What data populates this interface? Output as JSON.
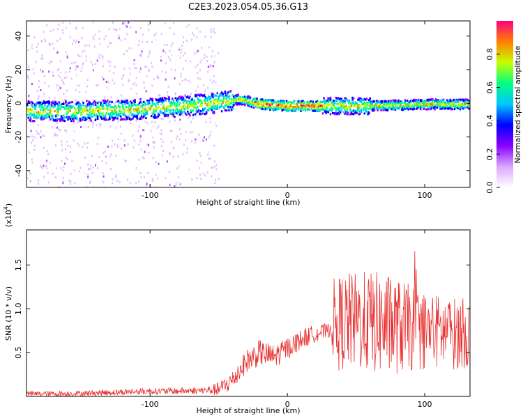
{
  "title": "C2E3.2023.054.05.36.G13",
  "chart_data": [
    {
      "type": "heatmap",
      "name": "spectrogram",
      "xlabel": "Height of straight line (km)",
      "ylabel": "Frequency (Hz)",
      "xlim": [
        -190,
        133
      ],
      "ylim": [
        -50,
        49
      ],
      "x_ticks": [
        -100,
        0,
        100
      ],
      "x_tick_labels": [
        "-100",
        "0",
        "100"
      ],
      "y_ticks": [
        -40,
        -20,
        0,
        20,
        40
      ],
      "y_tick_labels": [
        "-40",
        "-20",
        "0",
        "20",
        "40"
      ],
      "colorbar": {
        "label": "Normalized spectral amplitude",
        "range": [
          0,
          1
        ],
        "ticks": [
          0.0,
          0.2,
          0.4,
          0.6,
          0.8
        ],
        "tick_labels": [
          "0.0",
          "0.2",
          "0.4",
          "0.6",
          "0.8"
        ],
        "colormap": [
          "#ffffff",
          "#d9a8ff",
          "#8a00ff",
          "#0000ff",
          "#00c8ff",
          "#00ff80",
          "#c8ff00",
          "#ff8000",
          "#ff0080"
        ]
      },
      "band_center_hz": [
        {
          "x": -190,
          "y": -4
        },
        {
          "x": -150,
          "y": -4
        },
        {
          "x": -110,
          "y": -3
        },
        {
          "x": -75,
          "y": -1
        },
        {
          "x": -50,
          "y": 1
        },
        {
          "x": -35,
          "y": 3
        },
        {
          "x": -20,
          "y": 0
        },
        {
          "x": 0,
          "y": -1
        },
        {
          "x": 20,
          "y": -1
        },
        {
          "x": 25,
          "y": -1
        },
        {
          "x": 40,
          "y": -1
        },
        {
          "x": 60,
          "y": -1
        },
        {
          "x": 100,
          "y": 0
        },
        {
          "x": 133,
          "y": 0
        }
      ],
      "noise_region_km": [
        -190,
        -50
      ]
    },
    {
      "type": "line",
      "name": "snr",
      "xlabel": "Height of straight line (km)",
      "ylabel": "SNR (10 * v/v)",
      "scale_label": "(x10",
      "scale_exp": "4",
      "scale_close": ")",
      "xlim": [
        -190,
        133
      ],
      "ylim": [
        0,
        1.9
      ],
      "x_ticks": [
        -100,
        0,
        100
      ],
      "x_tick_labels": [
        "-100",
        "0",
        "100"
      ],
      "y_ticks": [
        0.5,
        1.0,
        1.5
      ],
      "y_tick_labels": [
        "0.5",
        "1.0",
        "1.5"
      ],
      "series": [
        {
          "color": "#e83030",
          "points": [
            {
              "x": -190,
              "y": 0.03
            },
            {
              "x": -160,
              "y": 0.03
            },
            {
              "x": -140,
              "y": 0.04
            },
            {
              "x": -120,
              "y": 0.05
            },
            {
              "x": -100,
              "y": 0.06
            },
            {
              "x": -80,
              "y": 0.06
            },
            {
              "x": -60,
              "y": 0.07
            },
            {
              "x": -50,
              "y": 0.08
            },
            {
              "x": -40,
              "y": 0.18
            },
            {
              "x": -30,
              "y": 0.4
            },
            {
              "x": -20,
              "y": 0.5
            },
            {
              "x": -10,
              "y": 0.45
            },
            {
              "x": 0,
              "y": 0.55
            },
            {
              "x": 10,
              "y": 0.65
            },
            {
              "x": 20,
              "y": 0.72
            },
            {
              "x": 30,
              "y": 0.75
            },
            {
              "x": 34,
              "y": 0.8
            },
            {
              "x": 40,
              "y": 0.85
            },
            {
              "x": 60,
              "y": 0.85
            },
            {
              "x": 80,
              "y": 0.8
            },
            {
              "x": 100,
              "y": 0.75
            },
            {
              "x": 120,
              "y": 0.72
            },
            {
              "x": 133,
              "y": 0.72
            }
          ],
          "spread": [
            {
              "x": -190,
              "y": 0.03
            },
            {
              "x": -60,
              "y": 0.04
            },
            {
              "x": -40,
              "y": 0.12
            },
            {
              "x": -20,
              "y": 0.15
            },
            {
              "x": 20,
              "y": 0.1
            },
            {
              "x": 32,
              "y": 0.08
            },
            {
              "x": 34,
              "y": 0.55
            },
            {
              "x": 70,
              "y": 0.6
            },
            {
              "x": 100,
              "y": 0.45
            },
            {
              "x": 133,
              "y": 0.4
            }
          ]
        }
      ]
    }
  ]
}
